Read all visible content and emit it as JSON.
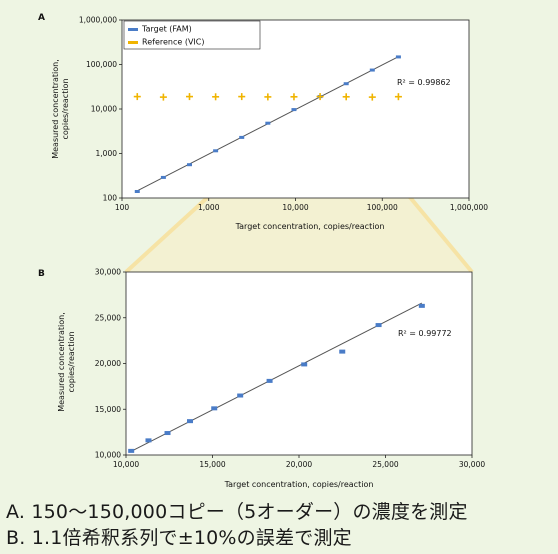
{
  "colors": {
    "background": "#eef5e3",
    "target": "#4a7cc7",
    "reference": "#f0b400",
    "fit_line": "#555555",
    "zoom_highlight": "#f6e3a5"
  },
  "captions": {
    "a": "A. 150～150,000コピー（5オーダー）の濃度を測定",
    "b": "B. 1.1倍希釈系列で±10%の誤差で測定"
  },
  "chart_data": [
    {
      "panel": "A",
      "type": "scatter",
      "x_scale": "log",
      "y_scale": "log",
      "xlabel": "Target concentration, copies/reaction",
      "ylabel": [
        "Measured concentration,",
        "copies/reaction"
      ],
      "xlim": [
        100,
        1000000
      ],
      "ylim": [
        100,
        1000000
      ],
      "x_ticks": [
        100,
        1000,
        10000,
        100000,
        1000000
      ],
      "x_tick_labels": [
        "100",
        "1,000",
        "10,000",
        "100,000",
        "1,000,000"
      ],
      "y_ticks": [
        100,
        1000,
        10000,
        100000,
        1000000
      ],
      "y_tick_labels": [
        "100",
        "1,000",
        "10,000",
        "100,000",
        "1,000,000"
      ],
      "legend_position": "top-left",
      "annotation": "R² = 0.99862",
      "series": [
        {
          "name": "Target (FAM)",
          "marker": "square",
          "x": [
            150,
            300,
            600,
            1200,
            2400,
            4800,
            9600,
            19200,
            38400,
            76800,
            153600
          ],
          "y": [
            140,
            290,
            560,
            1150,
            2300,
            4800,
            9700,
            19000,
            37000,
            75000,
            148000
          ]
        },
        {
          "name": "Reference (VIC)",
          "marker": "plus",
          "x": [
            150,
            300,
            600,
            1200,
            2400,
            4800,
            9600,
            19200,
            38400,
            76800,
            153600
          ],
          "y": [
            19000,
            18500,
            19000,
            18800,
            19000,
            18700,
            18800,
            19000,
            18800,
            18500,
            18900
          ]
        }
      ],
      "fit_line": {
        "x": [
          150,
          153600
        ],
        "y": [
          145,
          150000
        ]
      }
    },
    {
      "panel": "B",
      "type": "scatter",
      "xlabel": "Target concentration, copies/reaction",
      "ylabel": [
        "Measured concentration,",
        "copies/reaction"
      ],
      "xlim": [
        10000,
        30000
      ],
      "ylim": [
        10000,
        30000
      ],
      "x_ticks": [
        10000,
        15000,
        20000,
        25000,
        30000
      ],
      "x_tick_labels": [
        "10,000",
        "15,000",
        "20,000",
        "25,000",
        "30,000"
      ],
      "y_ticks": [
        10000,
        15000,
        20000,
        25000,
        30000
      ],
      "y_tick_labels": [
        "10,000",
        "15,000",
        "20,000",
        "25,000",
        "30,000"
      ],
      "annotation": "R² = 0.99772",
      "series": [
        {
          "marker": "square",
          "x": [
            10300,
            11300,
            12400,
            13700,
            15100,
            16600,
            18300,
            20300,
            22500,
            24600,
            27100
          ],
          "y": [
            10450,
            11600,
            12400,
            13700,
            15100,
            16500,
            18100,
            19900,
            21300,
            24200,
            26300
          ]
        }
      ],
      "fit_line": {
        "x": [
          10300,
          27100
        ],
        "y": [
          10400,
          26600
        ]
      }
    }
  ]
}
